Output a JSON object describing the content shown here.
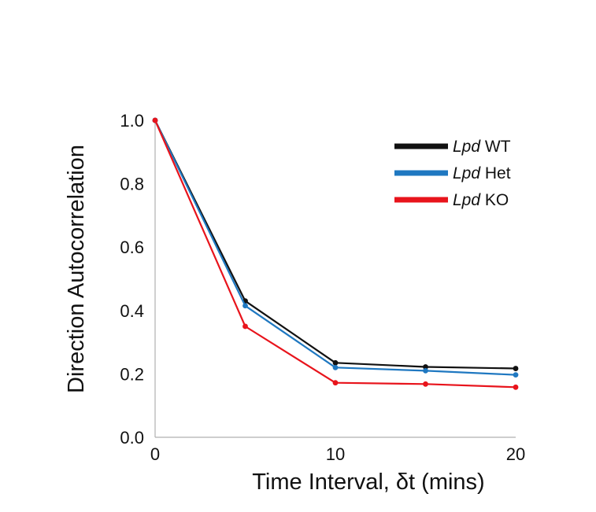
{
  "chart_data": {
    "type": "line",
    "title": "",
    "xlabel": "Time Interval, δt (mins)",
    "ylabel": "Direction Autocorrelation",
    "x": [
      0,
      5,
      10,
      15,
      20
    ],
    "xlim": [
      0,
      20
    ],
    "ylim": [
      0,
      1.0
    ],
    "xticks": [
      0,
      10,
      20
    ],
    "xtick_labels": [
      "0",
      "10",
      "20"
    ],
    "yticks": [
      0,
      0.2,
      0.4,
      0.6,
      0.8,
      1.0
    ],
    "ytick_labels": [
      "0.0",
      "0.2",
      "0.4",
      "0.6",
      "0.8",
      "1.0"
    ],
    "grid": false,
    "legend_position": "top-right",
    "series": [
      {
        "name": "Lpd WT",
        "gene": "Lpd",
        "genotype": "WT",
        "color": "#111111",
        "values": [
          1.0,
          0.43,
          0.235,
          0.222,
          0.217
        ]
      },
      {
        "name": "Lpd Het",
        "gene": "Lpd",
        "genotype": "Het",
        "color": "#1f78c1",
        "values": [
          1.0,
          0.415,
          0.22,
          0.21,
          0.197
        ]
      },
      {
        "name": "Lpd KO",
        "gene": "Lpd",
        "genotype": "KO",
        "color": "#e8141c",
        "values": [
          1.0,
          0.35,
          0.172,
          0.168,
          0.158
        ]
      }
    ]
  }
}
